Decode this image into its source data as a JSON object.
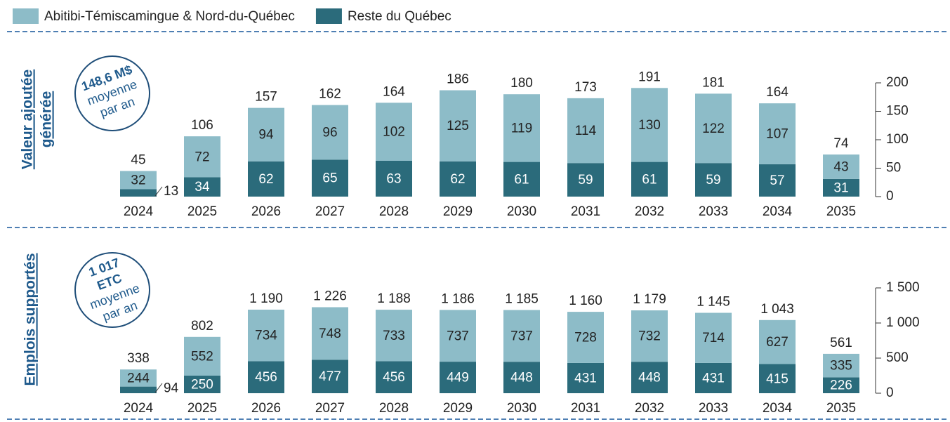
{
  "chart_data": [
    {
      "type": "stacked_bar",
      "side_label": [
        "Valeur ajoutée",
        "générée"
      ],
      "annotation": {
        "bold": [
          "148,6 M$"
        ],
        "regular": [
          "moyenne",
          "par an"
        ]
      },
      "categories": [
        "2024",
        "2025",
        "2026",
        "2027",
        "2028",
        "2029",
        "2030",
        "2031",
        "2032",
        "2033",
        "2034",
        "2035"
      ],
      "series": [
        {
          "name": "Reste du Québec",
          "color": "#2b6b7b",
          "values": [
            13,
            34,
            62,
            65,
            63,
            62,
            61,
            59,
            61,
            59,
            57,
            31
          ]
        },
        {
          "name": "Abitibi-Témiscamingue & Nord-du-Québec",
          "color": "#8dbcc8",
          "values": [
            32,
            72,
            94,
            96,
            102,
            125,
            119,
            114,
            130,
            122,
            107,
            43
          ]
        }
      ],
      "totals": [
        45,
        106,
        157,
        162,
        164,
        186,
        180,
        173,
        191,
        181,
        164,
        74
      ],
      "ylim": [
        0,
        200
      ],
      "yticks": [
        0,
        50,
        100,
        150,
        200
      ]
    },
    {
      "type": "stacked_bar",
      "side_label": [
        "Emplois supportés"
      ],
      "annotation": {
        "bold": [
          "1 017",
          "ETC"
        ],
        "regular": [
          "moyenne",
          "par an"
        ]
      },
      "categories": [
        "2024",
        "2025",
        "2026",
        "2027",
        "2028",
        "2029",
        "2030",
        "2031",
        "2032",
        "2033",
        "2034",
        "2035"
      ],
      "series": [
        {
          "name": "Reste du Québec",
          "color": "#2b6b7b",
          "values": [
            94,
            250,
            456,
            477,
            456,
            449,
            448,
            431,
            448,
            431,
            415,
            226
          ]
        },
        {
          "name": "Abitibi-Témiscamingue & Nord-du-Québec",
          "color": "#8dbcc8",
          "values": [
            244,
            552,
            734,
            748,
            733,
            737,
            737,
            728,
            732,
            714,
            627,
            335
          ]
        }
      ],
      "totals": [
        338,
        802,
        1190,
        1226,
        1188,
        1186,
        1185,
        1160,
        1179,
        1145,
        1043,
        561
      ],
      "totals_labels": [
        "338",
        "802",
        "1 190",
        "1 226",
        "1 188",
        "1 186",
        "1 185",
        "1 160",
        "1 179",
        "1 145",
        "1 043",
        "561"
      ],
      "ylim": [
        0,
        1500
      ],
      "yticks": [
        0,
        500,
        {
          "value": 1000,
          "label": "1 000"
        },
        {
          "value": 1500,
          "label": "1 500"
        }
      ]
    }
  ]
}
